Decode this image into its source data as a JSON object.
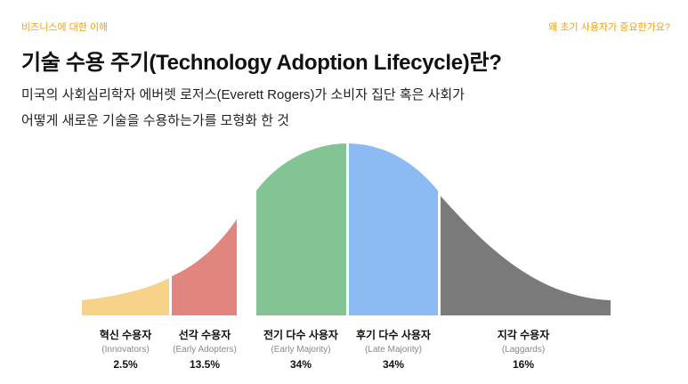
{
  "header": {
    "category": "비즈니스에 대한 이해",
    "question": "왜 초기 사용자가 중요한가요?"
  },
  "title": "기술 수용 주기(Technology Adoption Lifecycle)란?",
  "description": {
    "line1": "미국의 사회심리학자 에버렛 로저스(Everett Rogers)가 소비자 집단 혹은 사회가",
    "line2": "어떻게 새로운 기술을 수용하는가를 모형화 한 것"
  },
  "segments": [
    {
      "name": "혁신 수용자",
      "english": "(Innovators)",
      "percent": "2.5%",
      "color": "#f7d38a"
    },
    {
      "name": "선각 수용자",
      "english": "(Early Adopters)",
      "percent": "13.5%",
      "color": "#e0867f"
    },
    {
      "name": "전기 다수 사용자",
      "english": "(Early Majority)",
      "percent": "34%",
      "color": "#82c493"
    },
    {
      "name": "후기 다수 사용자",
      "english": "(Late Majority)",
      "percent": "34%",
      "color": "#8cbaf2"
    },
    {
      "name": "지각 수용자",
      "english": "(Laggards)",
      "percent": "16%",
      "color": "#7a7a7a"
    }
  ]
}
